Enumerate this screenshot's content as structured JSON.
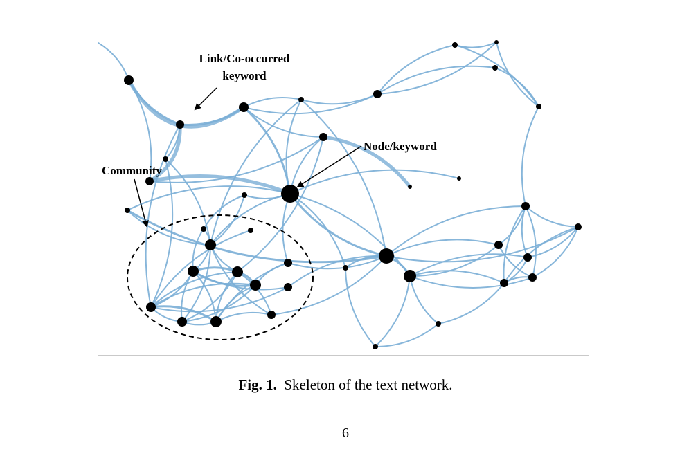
{
  "figure": {
    "annotations": {
      "link": [
        "Link/Co-occurred",
        "keyword"
      ],
      "node": "Node/keyword",
      "community": "Community"
    },
    "caption_label": "Fig. 1.",
    "caption_text": "Skeleton of the text network.",
    "edge_color": "#7aaed6",
    "node_color": "#000000"
  },
  "page_number": "6"
}
